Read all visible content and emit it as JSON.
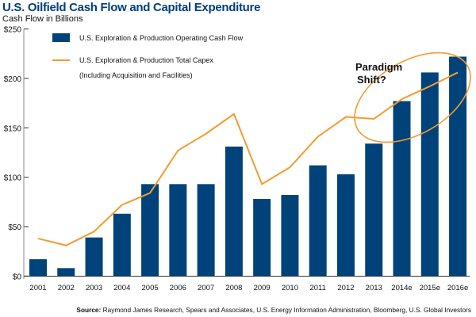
{
  "chart_data": {
    "type": "bar",
    "title": "U.S. Oilfield Cash Flow and Capital Expenditure",
    "ylabel": "Cash Flow in Billions",
    "xlabel": "",
    "ylim": [
      0,
      250
    ],
    "yticks": [
      "$0",
      "$50",
      "$100",
      "$150",
      "$200",
      "$250"
    ],
    "yticks_values": [
      0,
      50,
      100,
      150,
      200,
      250
    ],
    "categories": [
      "2001",
      "2002",
      "2003",
      "2004",
      "2005",
      "2006",
      "2007",
      "2008",
      "2009",
      "2010",
      "2011",
      "2012",
      "2013",
      "2014e",
      "2015e",
      "2016e"
    ],
    "series": [
      {
        "name": "U.S. Exploration & Production Operating Cash Flow",
        "type": "bar",
        "color": "#00437a",
        "values": [
          17,
          8,
          39,
          63,
          93,
          93,
          93,
          131,
          78,
          82,
          112,
          103,
          134,
          177,
          206,
          222
        ]
      },
      {
        "name": "U.S. Exploration & Production Total Capex",
        "name_line2": "(Including Acquisition and Facilities)",
        "type": "line",
        "color": "#f39b2d",
        "values": [
          38,
          31,
          45,
          72,
          84,
          127,
          144,
          164,
          93,
          110,
          141,
          161,
          159,
          179,
          192,
          206
        ]
      }
    ],
    "annotation": "Paradigm Shift?",
    "annotation_line1": "Paradigm",
    "annotation_line2": "Shift?",
    "legend_position": "top-left",
    "grid": false
  },
  "source_label": "Source:",
  "source_text": " Raymond James Research, Spears and Associates, U.S. Energy Information Administration, Bloomberg, U.S. Global Investors"
}
